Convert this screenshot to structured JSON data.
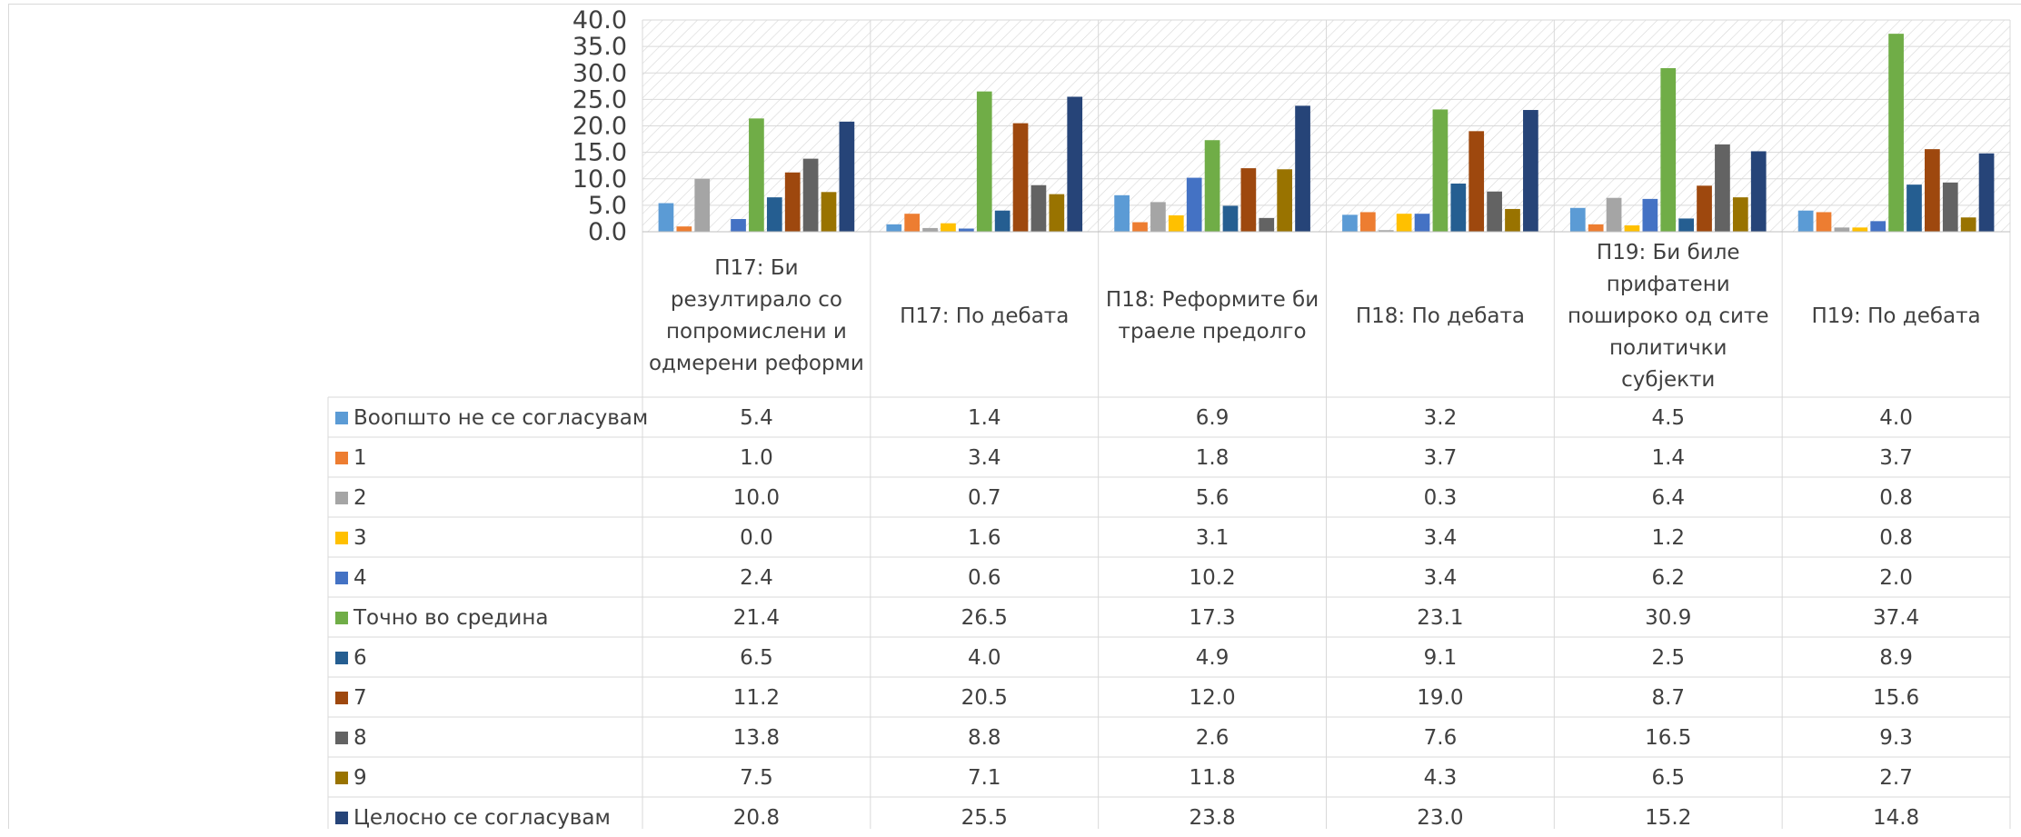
{
  "chart_data": {
    "type": "bar",
    "categories": [
      "П17: Би резултирало со попромислени и одмерени реформи",
      "П17: По дебата",
      "П18: Реформите би траеле предолго",
      "П18: По дебата",
      "П19: Би биле прифатени пошироко од сите политички субјекти",
      "П19: По дебата"
    ],
    "series": [
      {
        "name": "Воопшто не се согласувам",
        "color": "#5B9BD5",
        "values": [
          5.4,
          1.4,
          6.9,
          3.2,
          4.5,
          4.0
        ]
      },
      {
        "name": "1",
        "color": "#ED7D31",
        "values": [
          1.0,
          3.4,
          1.8,
          3.7,
          1.4,
          3.7
        ]
      },
      {
        "name": "2",
        "color": "#A5A5A5",
        "values": [
          10.0,
          0.7,
          5.6,
          0.3,
          6.4,
          0.8
        ]
      },
      {
        "name": "3",
        "color": "#FFC000",
        "values": [
          0.0,
          1.6,
          3.1,
          3.4,
          1.2,
          0.8
        ]
      },
      {
        "name": "4",
        "color": "#4472C4",
        "values": [
          2.4,
          0.6,
          10.2,
          3.4,
          6.2,
          2.0
        ]
      },
      {
        "name": "Точно во средина",
        "color": "#70AD47",
        "values": [
          21.4,
          26.5,
          17.3,
          23.1,
          30.9,
          37.4
        ]
      },
      {
        "name": "6",
        "color": "#255E91",
        "values": [
          6.5,
          4.0,
          4.9,
          9.1,
          2.5,
          8.9
        ]
      },
      {
        "name": "7",
        "color": "#9E480E",
        "values": [
          11.2,
          20.5,
          12.0,
          19.0,
          8.7,
          15.6
        ]
      },
      {
        "name": "8",
        "color": "#636363",
        "values": [
          13.8,
          8.8,
          2.6,
          7.6,
          16.5,
          9.3
        ]
      },
      {
        "name": "9",
        "color": "#997300",
        "values": [
          7.5,
          7.1,
          11.8,
          4.3,
          6.5,
          2.7
        ]
      },
      {
        "name": "Целосно се согласувам",
        "color": "#264478",
        "values": [
          20.8,
          25.5,
          23.8,
          23.0,
          15.2,
          14.8
        ]
      }
    ],
    "yticks": [
      "0.0",
      "5.0",
      "10.0",
      "15.0",
      "20.0",
      "25.0",
      "30.0",
      "35.0",
      "40.0"
    ],
    "ylim": [
      0,
      40
    ],
    "grid": true,
    "legend": "data-table-left",
    "title": "",
    "xlabel": "",
    "ylabel": ""
  }
}
